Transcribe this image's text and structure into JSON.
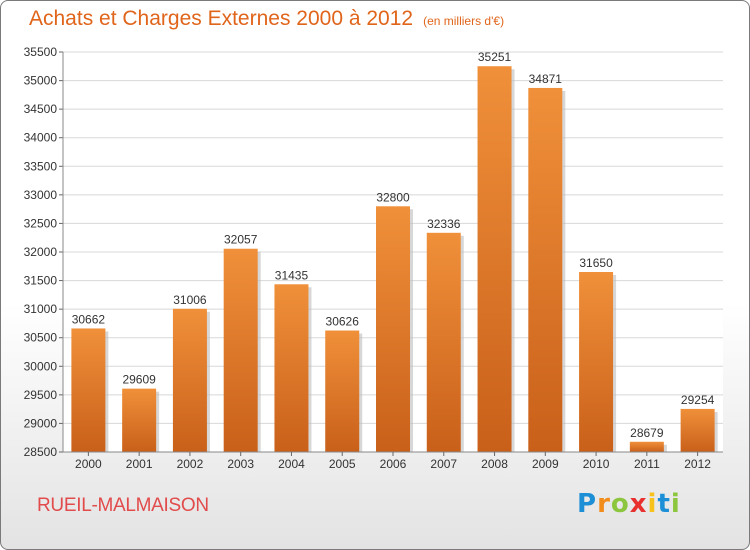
{
  "header": {
    "title": "Achats et Charges Externes 2000 à 2012",
    "unit": "(en milliers d'€)"
  },
  "footer": {
    "city": "RUEIL-MALMAISON",
    "logo_letters": [
      {
        "ch": "P",
        "color": "#1d8fd6"
      },
      {
        "ch": "r",
        "color": "#f28c1a"
      },
      {
        "ch": "o",
        "color": "#8cc63f"
      },
      {
        "ch": "x",
        "color": "#e8312f"
      },
      {
        "ch": "i",
        "color": "#f7c21b"
      },
      {
        "ch": "t",
        "color": "#1d8fd6"
      },
      {
        "ch": "i",
        "color": "#8cc63f"
      }
    ]
  },
  "chart_data": {
    "type": "bar",
    "title": "Achats et Charges Externes 2000 à 2012",
    "categories": [
      "2000",
      "2001",
      "2002",
      "2003",
      "2004",
      "2005",
      "2006",
      "2007",
      "2008",
      "2009",
      "2010",
      "2011",
      "2012"
    ],
    "values": [
      30662,
      29609,
      31006,
      32057,
      31435,
      30626,
      32800,
      32336,
      35251,
      34871,
      31650,
      28679,
      29254
    ],
    "ylim": [
      28500,
      35500
    ],
    "yticks": [
      28500,
      29000,
      29500,
      30000,
      30500,
      31000,
      31500,
      32000,
      32500,
      33000,
      33500,
      34000,
      34500,
      35000,
      35500
    ],
    "grid": true,
    "bar_color": "#f0903a",
    "bar_color_dark": "#c9601a"
  }
}
